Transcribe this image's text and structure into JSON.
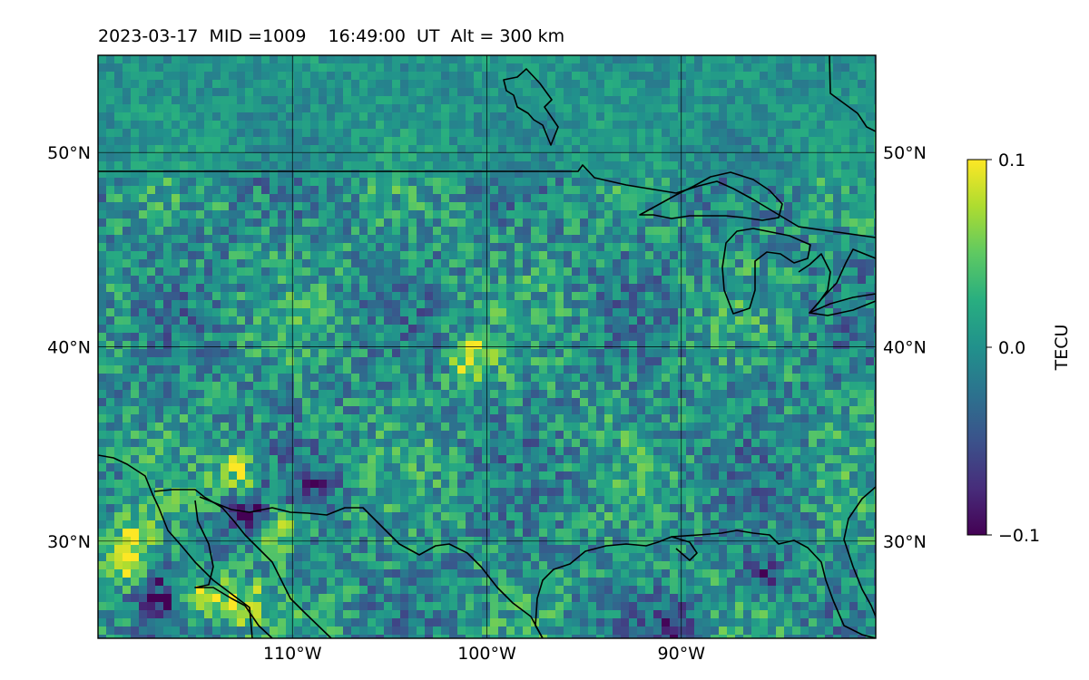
{
  "title": "2023-03-17  MID =1009    16:49:00  UT  Alt = 300 km",
  "map": {
    "lon_range": [
      -120,
      -80
    ],
    "lat_range": [
      25,
      55
    ],
    "lon_ticks": [
      {
        "value": -110,
        "label": "110°W"
      },
      {
        "value": -100,
        "label": "100°W"
      },
      {
        "value": -90,
        "label": "90°W"
      }
    ],
    "lat_ticks": [
      {
        "value": 50,
        "label": "50°N"
      },
      {
        "value": 40,
        "label": "40°N"
      },
      {
        "value": 30,
        "label": "30°N"
      }
    ],
    "gridlines": true,
    "coastline_color": "#000000",
    "field": "TEC perturbation",
    "colormap": "viridis"
  },
  "colorbar": {
    "label": "TECU",
    "min": -0.1,
    "max": 0.1,
    "ticks": [
      {
        "value": 0.1,
        "label": "0.1"
      },
      {
        "value": 0.0,
        "label": "0.0"
      },
      {
        "value": -0.1,
        "label": "−0.1"
      }
    ]
  },
  "anomalies": [
    {
      "lon": -119,
      "lat": 29,
      "value": 0.1
    },
    {
      "lon": -115,
      "lat": 27.5,
      "value": 0.08
    },
    {
      "lon": -113,
      "lat": 27,
      "value": 0.1
    },
    {
      "lon": -111,
      "lat": 30.8,
      "value": 0.1
    },
    {
      "lon": -112.5,
      "lat": 31.5,
      "value": -0.1
    },
    {
      "lon": -117,
      "lat": 27.2,
      "value": -0.09
    },
    {
      "lon": -101,
      "lat": 39.6,
      "value": 0.1
    },
    {
      "lon": -113,
      "lat": 33.8,
      "value": 0.08
    },
    {
      "lon": -90.5,
      "lat": 25.8,
      "value": -0.08
    },
    {
      "lon": -86,
      "lat": 28.5,
      "value": -0.07
    },
    {
      "lon": -109,
      "lat": 33,
      "value": -0.06
    },
    {
      "lon": -118.5,
      "lat": 30.5,
      "value": 0.08
    }
  ]
}
